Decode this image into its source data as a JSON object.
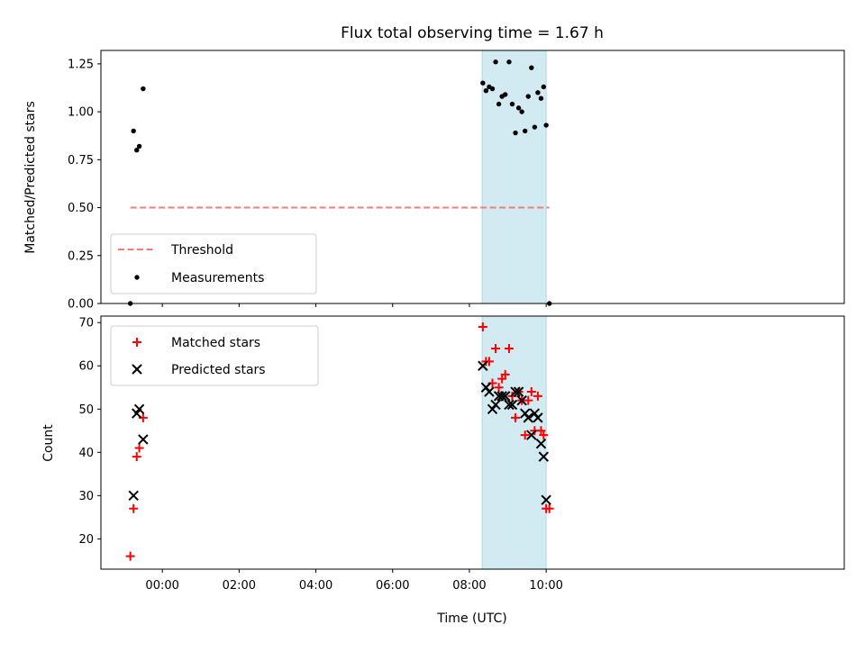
{
  "colors": {
    "threshold": "#f87a7a",
    "measurement": "#000000",
    "matched": "#ff0000",
    "predicted": "#000000",
    "shade": "#add8e6"
  },
  "chart_data": [
    {
      "type": "scatter",
      "panel": "top",
      "title": "Flux total observing time = 1.67 h",
      "xlabel": "",
      "ylabel": "Matched/Predicted stars",
      "xlim": [
        -96,
        1066
      ],
      "ylim": [
        0,
        1.32
      ],
      "yticks": [
        0,
        0.25,
        0.5,
        0.75,
        1.0,
        1.25
      ],
      "ytick_labels": [
        "0.00",
        "0.25",
        "0.50",
        "0.75",
        "1.00",
        "1.25"
      ],
      "xticks": [
        0,
        120,
        240,
        360,
        480,
        600
      ],
      "shaded_region": [
        500,
        600
      ],
      "threshold": {
        "name": "Threshold",
        "y": 0.5,
        "x_range": [
          -50,
          605
        ]
      },
      "legend": [
        "Threshold",
        "Measurements"
      ],
      "legend_position": "lower-left",
      "series": [
        {
          "name": "Measurements",
          "marker": "dot",
          "points": [
            [
              -50,
              0.0
            ],
            [
              -45,
              0.9
            ],
            [
              -40,
              0.8
            ],
            [
              -36,
              0.82
            ],
            [
              -30,
              1.12
            ],
            [
              501,
              1.15
            ],
            [
              506,
              1.11
            ],
            [
              511,
              1.13
            ],
            [
              516,
              1.12
            ],
            [
              521,
              1.26
            ],
            [
              526,
              1.04
            ],
            [
              531,
              1.08
            ],
            [
              536,
              1.09
            ],
            [
              542,
              1.26
            ],
            [
              547,
              1.04
            ],
            [
              552,
              0.89
            ],
            [
              557,
              1.02
            ],
            [
              562,
              1.0
            ],
            [
              567,
              0.9
            ],
            [
              572,
              1.08
            ],
            [
              577,
              1.23
            ],
            [
              582,
              0.92
            ],
            [
              587,
              1.1
            ],
            [
              592,
              1.07
            ],
            [
              596,
              1.13
            ],
            [
              600,
              0.93
            ],
            [
              605,
              0.0
            ]
          ]
        }
      ]
    },
    {
      "type": "scatter",
      "panel": "bottom",
      "title": "",
      "xlabel": "Time (UTC)",
      "ylabel": "Count",
      "xlim": [
        -96,
        1066
      ],
      "ylim": [
        13,
        71.5
      ],
      "yticks": [
        20,
        30,
        40,
        50,
        60,
        70
      ],
      "ytick_labels": [
        "20",
        "30",
        "40",
        "50",
        "60",
        "70"
      ],
      "xticks": [
        0,
        120,
        240,
        360,
        480,
        600
      ],
      "xtick_labels": [
        "00:00",
        "02:00",
        "04:00",
        "06:00",
        "08:00",
        "10:00"
      ],
      "shaded_region": [
        500,
        600
      ],
      "legend": [
        "Matched stars",
        "Predicted stars"
      ],
      "legend_position": "upper-left",
      "series": [
        {
          "name": "Matched stars",
          "marker": "plus",
          "points": [
            [
              -50,
              16
            ],
            [
              -45,
              27
            ],
            [
              -40,
              39
            ],
            [
              -36,
              41
            ],
            [
              -30,
              48
            ],
            [
              501,
              69
            ],
            [
              506,
              61
            ],
            [
              511,
              61
            ],
            [
              516,
              56
            ],
            [
              521,
              64
            ],
            [
              526,
              55
            ],
            [
              531,
              57
            ],
            [
              536,
              58
            ],
            [
              542,
              64
            ],
            [
              547,
              53
            ],
            [
              552,
              48
            ],
            [
              557,
              54
            ],
            [
              562,
              52
            ],
            [
              567,
              44
            ],
            [
              572,
              52
            ],
            [
              577,
              54
            ],
            [
              582,
              45
            ],
            [
              587,
              53
            ],
            [
              592,
              45
            ],
            [
              596,
              44
            ],
            [
              600,
              27
            ],
            [
              605,
              27
            ]
          ]
        },
        {
          "name": "Predicted stars",
          "marker": "x",
          "points": [
            [
              -45,
              30
            ],
            [
              -40,
              49
            ],
            [
              -36,
              50
            ],
            [
              -30,
              43
            ],
            [
              501,
              60
            ],
            [
              506,
              55
            ],
            [
              511,
              54
            ],
            [
              516,
              50
            ],
            [
              521,
              51
            ],
            [
              526,
              53
            ],
            [
              531,
              53
            ],
            [
              536,
              53
            ],
            [
              542,
              51
            ],
            [
              547,
              51
            ],
            [
              552,
              54
            ],
            [
              557,
              54
            ],
            [
              562,
              52
            ],
            [
              567,
              49
            ],
            [
              572,
              48
            ],
            [
              577,
              44
            ],
            [
              582,
              49
            ],
            [
              587,
              48
            ],
            [
              592,
              42
            ],
            [
              596,
              39
            ],
            [
              600,
              29
            ]
          ]
        }
      ]
    }
  ]
}
